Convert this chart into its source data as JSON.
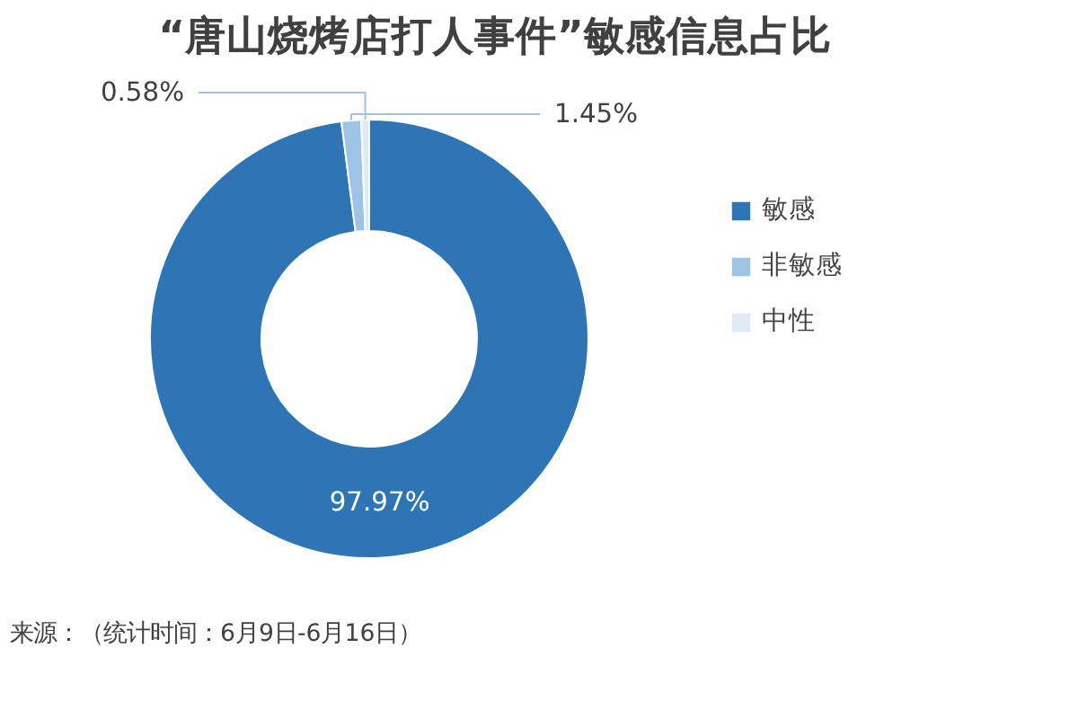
{
  "chart_data": {
    "type": "donut",
    "title": "“唐山烧烤店打人事件”敏感信息占比",
    "categories": [
      "敏感",
      "非敏感",
      "中性"
    ],
    "values": [
      97.97,
      1.45,
      0.58
    ],
    "colors": [
      "#2e75b6",
      "#9dc3e6",
      "#deebf7"
    ],
    "value_labels": [
      "97.97%",
      "1.45%",
      "0.58%"
    ],
    "legend": "right",
    "annotations": [
      "来源：（统计时间：6月9日-6月16日）"
    ]
  }
}
